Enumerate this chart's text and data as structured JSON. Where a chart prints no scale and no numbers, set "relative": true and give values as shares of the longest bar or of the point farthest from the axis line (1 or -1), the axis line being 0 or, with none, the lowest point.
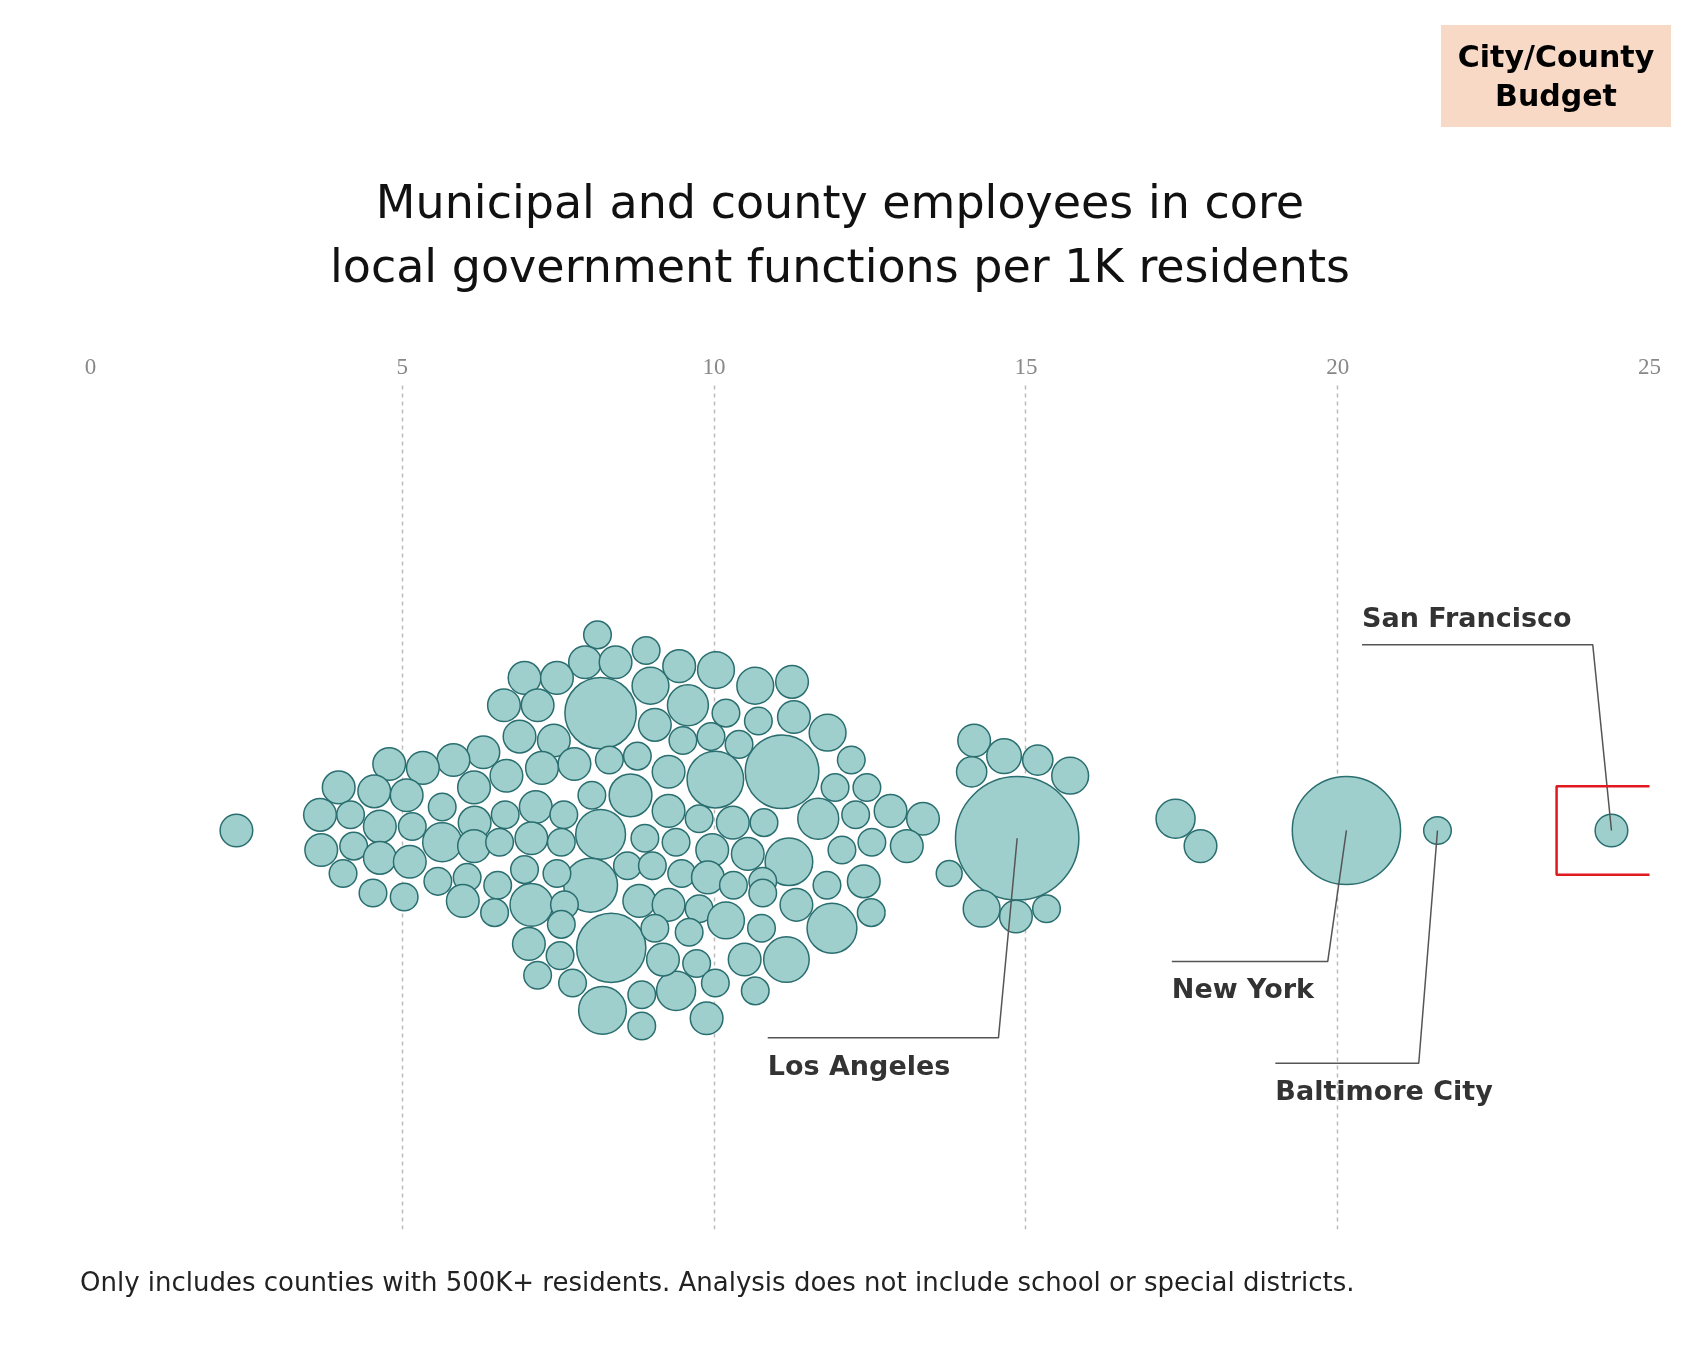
{
  "chart_data": {
    "type": "bubble",
    "title": "Municipal and county employees in core local government functions per 1K residents",
    "relative": true,
    "color": "#9fcfcc",
    "xlim": [
      0,
      25
    ],
    "xticks": [
      0,
      5,
      10,
      15,
      20,
      25
    ],
    "grid": "x",
    "x": [
      2.34,
      24.39,
      21.6,
      20.14,
      17.4,
      17.8,
      14.86,
      13.77,
      14.17,
      14.65,
      15.19,
      15.71,
      14.13,
      14.29,
      14.84,
      15.33,
      8.18,
      11.09,
      10.02,
      8.18,
      8.02,
      8.35,
      8.66,
      9.58,
      11.2,
      11.89,
      11.16,
      11.67,
      7.07,
      8.21,
      5.64,
      9.39,
      8.13,
      7.93,
      8.42,
      8.91,
      6.96,
      7.48,
      9.44,
      10.03,
      10.66,
      11.25,
      6.63,
      7.17,
      8.98,
      9.05,
      10.19,
      10.71,
      11.28,
      11.82,
      6.88,
      7.43,
      6.3,
      5.82,
      5.33,
      4.79,
      3.98,
      4.55,
      5.07,
      7.76,
      8.32,
      8.77,
      9.27,
      9.5,
      9.95,
      10.4,
      12.2,
      11.94,
      12.45,
      3.68,
      4.17,
      4.64,
      5.16,
      5.64,
      6.15,
      6.67,
      7.24,
      6.16,
      6.65,
      7.14,
      7.59,
      8.04,
      9.27,
      9.76,
      10.3,
      10.8,
      12.27,
      12.83,
      13.35,
      12.53,
      13.09,
      12.05,
      3.7,
      4.22,
      4.64,
      5.12,
      6.15,
      6.56,
      7.07,
      7.55,
      8.89,
      9.39,
      9.97,
      10.54,
      4.05,
      4.53,
      5.03,
      5.57,
      6.04,
      6.53,
      6.96,
      7.48,
      8.61,
      9.01,
      9.48,
      9.9,
      10.31,
      10.78,
      11.81,
      12.4,
      5.97,
      6.48,
      7.6,
      8.8,
      9.27,
      9.76,
      10.19,
      10.78,
      11.32,
      12.52,
      7.03,
      7.55,
      9.05,
      9.6,
      10.76,
      7.53,
      7.17,
      7.73,
      9.18,
      9.72,
      10.49,
      8.84,
      10.02,
      10.66,
      8.84,
      9.88
    ],
    "values": [
      0.5,
      0.5,
      0.5,
      0.5,
      0.53,
      0.46,
      0.48,
      0.39,
      0.73,
      0.69,
      0.68,
      0.64,
      0.65,
      0.3,
      0.28,
      0.3,
      0.8,
      0.65,
      0.63,
      0.49,
      0.36,
      0.2,
      0.59,
      0.82,
      0.42,
      0.25,
      0.17,
      0.53,
      0.31,
      0.04,
      0.47,
      0.09,
      1,
      0.93,
      0.93,
      0.96,
      0.89,
      0.89,
      0.92,
      0.91,
      0.87,
      0.88,
      0.82,
      0.82,
      0.87,
      0.77,
      0.8,
      0.78,
      0.79,
      0.75,
      0.74,
      0.73,
      0.7,
      0.68,
      0.66,
      0.67,
      0.61,
      0.6,
      0.59,
      0.67,
      0.68,
      0.69,
      0.65,
      0.73,
      0.74,
      0.72,
      0.68,
      0.61,
      0.61,
      0.54,
      0.54,
      0.51,
      0.51,
      0.56,
      0.61,
      0.64,
      0.66,
      0.52,
      0.54,
      0.56,
      0.54,
      0.59,
      0.55,
      0.53,
      0.52,
      0.52,
      0.54,
      0.55,
      0.53,
      0.47,
      0.46,
      0.45,
      0.45,
      0.46,
      0.43,
      0.42,
      0.46,
      0.47,
      0.48,
      0.47,
      0.48,
      0.47,
      0.45,
      0.44,
      0.39,
      0.34,
      0.33,
      0.37,
      0.38,
      0.36,
      0.4,
      0.39,
      0.41,
      0.41,
      0.39,
      0.38,
      0.36,
      0.37,
      0.36,
      0.37,
      0.32,
      0.29,
      0.31,
      0.32,
      0.31,
      0.3,
      0.27,
      0.34,
      0.31,
      0.29,
      0.21,
      0.26,
      0.25,
      0.24,
      0.25,
      0.18,
      0.13,
      0.11,
      0.17,
      0.16,
      0.17,
      0.08,
      0.11,
      0.09,
      0,
      0.02
    ],
    "sizes": [
      0.07,
      0.07,
      0.05,
      0.77,
      0.1,
      0.07,
      1,
      0.044,
      0.07,
      0.079,
      0.06,
      0.089,
      0.06,
      0.089,
      0.07,
      0.05,
      0.335,
      0.356,
      0.21,
      0.163,
      0.19,
      0.315,
      0.12,
      0.11,
      0.149,
      0.163,
      0.136,
      0.11,
      0.12,
      0.149,
      0.1,
      0.1,
      0.05,
      0.07,
      0.07,
      0.05,
      0.07,
      0.07,
      0.07,
      0.089,
      0.089,
      0.07,
      0.07,
      0.07,
      0.089,
      0.07,
      0.05,
      0.05,
      0.07,
      0.089,
      0.07,
      0.07,
      0.07,
      0.07,
      0.07,
      0.07,
      0.07,
      0.07,
      0.07,
      0.07,
      0.05,
      0.05,
      0.07,
      0.05,
      0.05,
      0.05,
      0.05,
      0.05,
      0.05,
      0.07,
      0.05,
      0.07,
      0.05,
      0.05,
      0.07,
      0.07,
      0.07,
      0.07,
      0.05,
      0.07,
      0.05,
      0.05,
      0.07,
      0.05,
      0.07,
      0.05,
      0.05,
      0.07,
      0.07,
      0.05,
      0.07,
      0.05,
      0.07,
      0.05,
      0.07,
      0.07,
      0.07,
      0.05,
      0.07,
      0.05,
      0.05,
      0.05,
      0.07,
      0.07,
      0.05,
      0.05,
      0.05,
      0.05,
      0.05,
      0.05,
      0.05,
      0.05,
      0.05,
      0.05,
      0.05,
      0.07,
      0.05,
      0.05,
      0.05,
      0.07,
      0.07,
      0.05,
      0.05,
      0.07,
      0.07,
      0.05,
      0.089,
      0.05,
      0.07,
      0.05,
      0.07,
      0.05,
      0.05,
      0.05,
      0.05,
      0.05,
      0.05,
      0.05,
      0.07,
      0.05,
      0.07,
      0.05,
      0.05,
      0.05,
      0.05,
      0.07
    ],
    "annotations": [
      {
        "text": "San Francisco",
        "x": 24.39,
        "y": 0.5
      },
      {
        "text": "Los Angeles",
        "x": 14.86,
        "y": 0.48
      },
      {
        "text": "New York",
        "x": 20.14,
        "y": 0.5
      },
      {
        "text": "Baltimore City",
        "x": 21.6,
        "y": 0.5
      },
      "City/County Budget",
      "Only includes counties with 500K+ residents. Analysis does not include school or special districts."
    ]
  }
}
